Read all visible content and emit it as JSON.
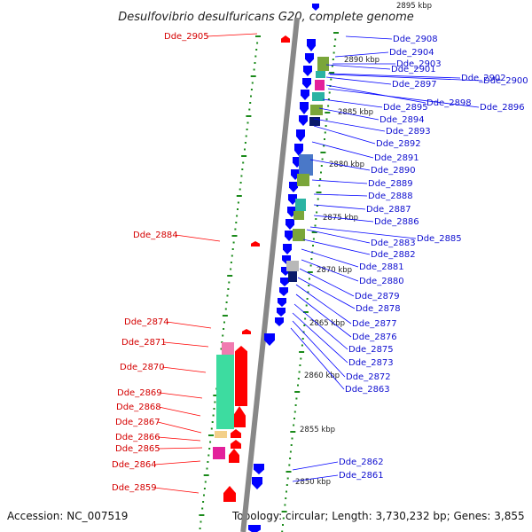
{
  "title": "Desulfovibrio desulfuricans G20, complete genome",
  "accession": "Accession: NC_007519",
  "topology": "Topology: circular; Length: 3,730,232 bp; Genes: 3,855",
  "colors": {
    "forward": "#ff0000",
    "reverse": "#0000ff",
    "backbone": "#888888",
    "tick": "#1a8a1a",
    "teal": "#2ab3a3",
    "magenta": "#e3209b",
    "olive": "#7aa63a",
    "pink": "#f07bb0",
    "mint": "#3ddca0",
    "tan": "#f3d08a",
    "steel": "#4a78c8",
    "navy": "#0a1a6a",
    "gray": "#b8b8b8"
  },
  "scale_labels": [
    "2895 kbp",
    "2890 kbp",
    "2885 kbp",
    "2880 kbp",
    "2875 kbp",
    "2870 kbp",
    "2865 kbp",
    "2860 kbp",
    "2855 kbp",
    "2850 kbp"
  ],
  "left_labels": [
    "Dde_2905",
    "Dde_2884",
    "Dde_2874",
    "Dde_2871",
    "Dde_2870",
    "Dde_2869",
    "Dde_2868",
    "Dde_2867",
    "Dde_2866",
    "Dde_2865",
    "Dde_2864",
    "Dde_2859"
  ],
  "right_labels": [
    "Dde_2908",
    "Dde_2904",
    "Dde_2903",
    "Dde_2901",
    "Dde_2902",
    "Dde_2900",
    "Dde_2897",
    "Dde_2898",
    "Dde_2896",
    "Dde_2895",
    "Dde_2894",
    "Dde_2893",
    "Dde_2892",
    "Dde_2891",
    "Dde_2890",
    "Dde_2889",
    "Dde_2888",
    "Dde_2887",
    "Dde_2886",
    "Dde_2885",
    "Dde_2883",
    "Dde_2882",
    "Dde_2881",
    "Dde_2880",
    "Dde_2879",
    "Dde_2878",
    "Dde_2877",
    "Dde_2876",
    "Dde_2875",
    "Dde_2873",
    "Dde_2872",
    "Dde_2863",
    "Dde_2862",
    "Dde_2861"
  ]
}
